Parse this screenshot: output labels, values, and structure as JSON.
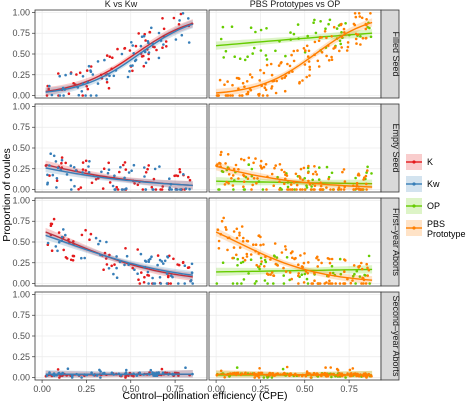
{
  "chart_data": {
    "type": "scatter",
    "xlabel": "Control–pollination efficiency (CPE)",
    "ylabel": "Proportion of ovules",
    "xlim": [
      -0.04,
      0.93
    ],
    "ylim": [
      -0.03,
      1.03
    ],
    "x_ticks": [
      "0.00",
      "0.25",
      "0.50",
      "0.75"
    ],
    "y_ticks": [
      "0.00",
      "0.25",
      "0.50",
      "0.75",
      "1.00"
    ],
    "columns": [
      "K vs Kw",
      "PBS Prototypes vs OP"
    ],
    "rows": [
      "Filled Seed",
      "Empty Seed",
      "First–year Aborts",
      "Second–year Aborts"
    ],
    "grid": true,
    "legend_position": "right",
    "legend": [
      {
        "label": "K",
        "color": "#e41a1c"
      },
      {
        "label": "Kw",
        "color": "#377eb8"
      },
      {
        "label": "OP",
        "color": "#66cc00"
      },
      {
        "label": "PBS\nPrototype",
        "color": "#ff7f00"
      }
    ],
    "panels": [
      {
        "row": 0,
        "col": 0,
        "series": [
          {
            "name": "K",
            "fit": [
              [
                0.02,
                0.05
              ],
              [
                0.85,
                0.87
              ]
            ]
          },
          {
            "name": "Kw",
            "fit": [
              [
                0.02,
                0.04
              ],
              [
                0.85,
                0.86
              ]
            ]
          }
        ]
      },
      {
        "row": 0,
        "col": 1,
        "series": [
          {
            "name": "OP",
            "fit": [
              [
                0.0,
                0.6
              ],
              [
                0.88,
                0.75
              ]
            ]
          },
          {
            "name": "PBS Prototype",
            "fit": [
              [
                0.0,
                0.03
              ],
              [
                0.88,
                0.88
              ]
            ]
          }
        ]
      },
      {
        "row": 1,
        "col": 0,
        "series": [
          {
            "name": "K",
            "fit": [
              [
                0.02,
                0.3
              ],
              [
                0.85,
                0.05
              ]
            ]
          },
          {
            "name": "Kw",
            "fit": [
              [
                0.02,
                0.26
              ],
              [
                0.85,
                0.05
              ]
            ]
          }
        ]
      },
      {
        "row": 1,
        "col": 1,
        "series": [
          {
            "name": "OP",
            "fit": [
              [
                0.0,
                0.1
              ],
              [
                0.88,
                0.07
              ]
            ]
          },
          {
            "name": "PBS Prototype",
            "fit": [
              [
                0.0,
                0.28
              ],
              [
                0.88,
                0.03
              ]
            ]
          }
        ]
      },
      {
        "row": 2,
        "col": 0,
        "series": [
          {
            "name": "K",
            "fit": [
              [
                0.02,
                0.62
              ],
              [
                0.85,
                0.08
              ]
            ]
          },
          {
            "name": "Kw",
            "fit": [
              [
                0.02,
                0.58
              ],
              [
                0.85,
                0.1
              ]
            ]
          }
        ]
      },
      {
        "row": 2,
        "col": 1,
        "series": [
          {
            "name": "OP",
            "fit": [
              [
                0.0,
                0.14
              ],
              [
                0.88,
                0.17
              ]
            ]
          },
          {
            "name": "PBS Prototype",
            "fit": [
              [
                0.0,
                0.62
              ],
              [
                0.88,
                0.04
              ]
            ]
          }
        ]
      },
      {
        "row": 3,
        "col": 0,
        "series": [
          {
            "name": "K",
            "fit": [
              [
                0.02,
                0.03
              ],
              [
                0.85,
                0.04
              ]
            ]
          },
          {
            "name": "Kw",
            "fit": [
              [
                0.02,
                0.04
              ],
              [
                0.85,
                0.04
              ]
            ]
          }
        ]
      },
      {
        "row": 3,
        "col": 1,
        "series": [
          {
            "name": "OP",
            "fit": [
              [
                0.0,
                0.03
              ],
              [
                0.88,
                0.03
              ]
            ]
          },
          {
            "name": "PBS Prototype",
            "fit": [
              [
                0.0,
                0.04
              ],
              [
                0.88,
                0.03
              ]
            ]
          }
        ]
      }
    ]
  }
}
